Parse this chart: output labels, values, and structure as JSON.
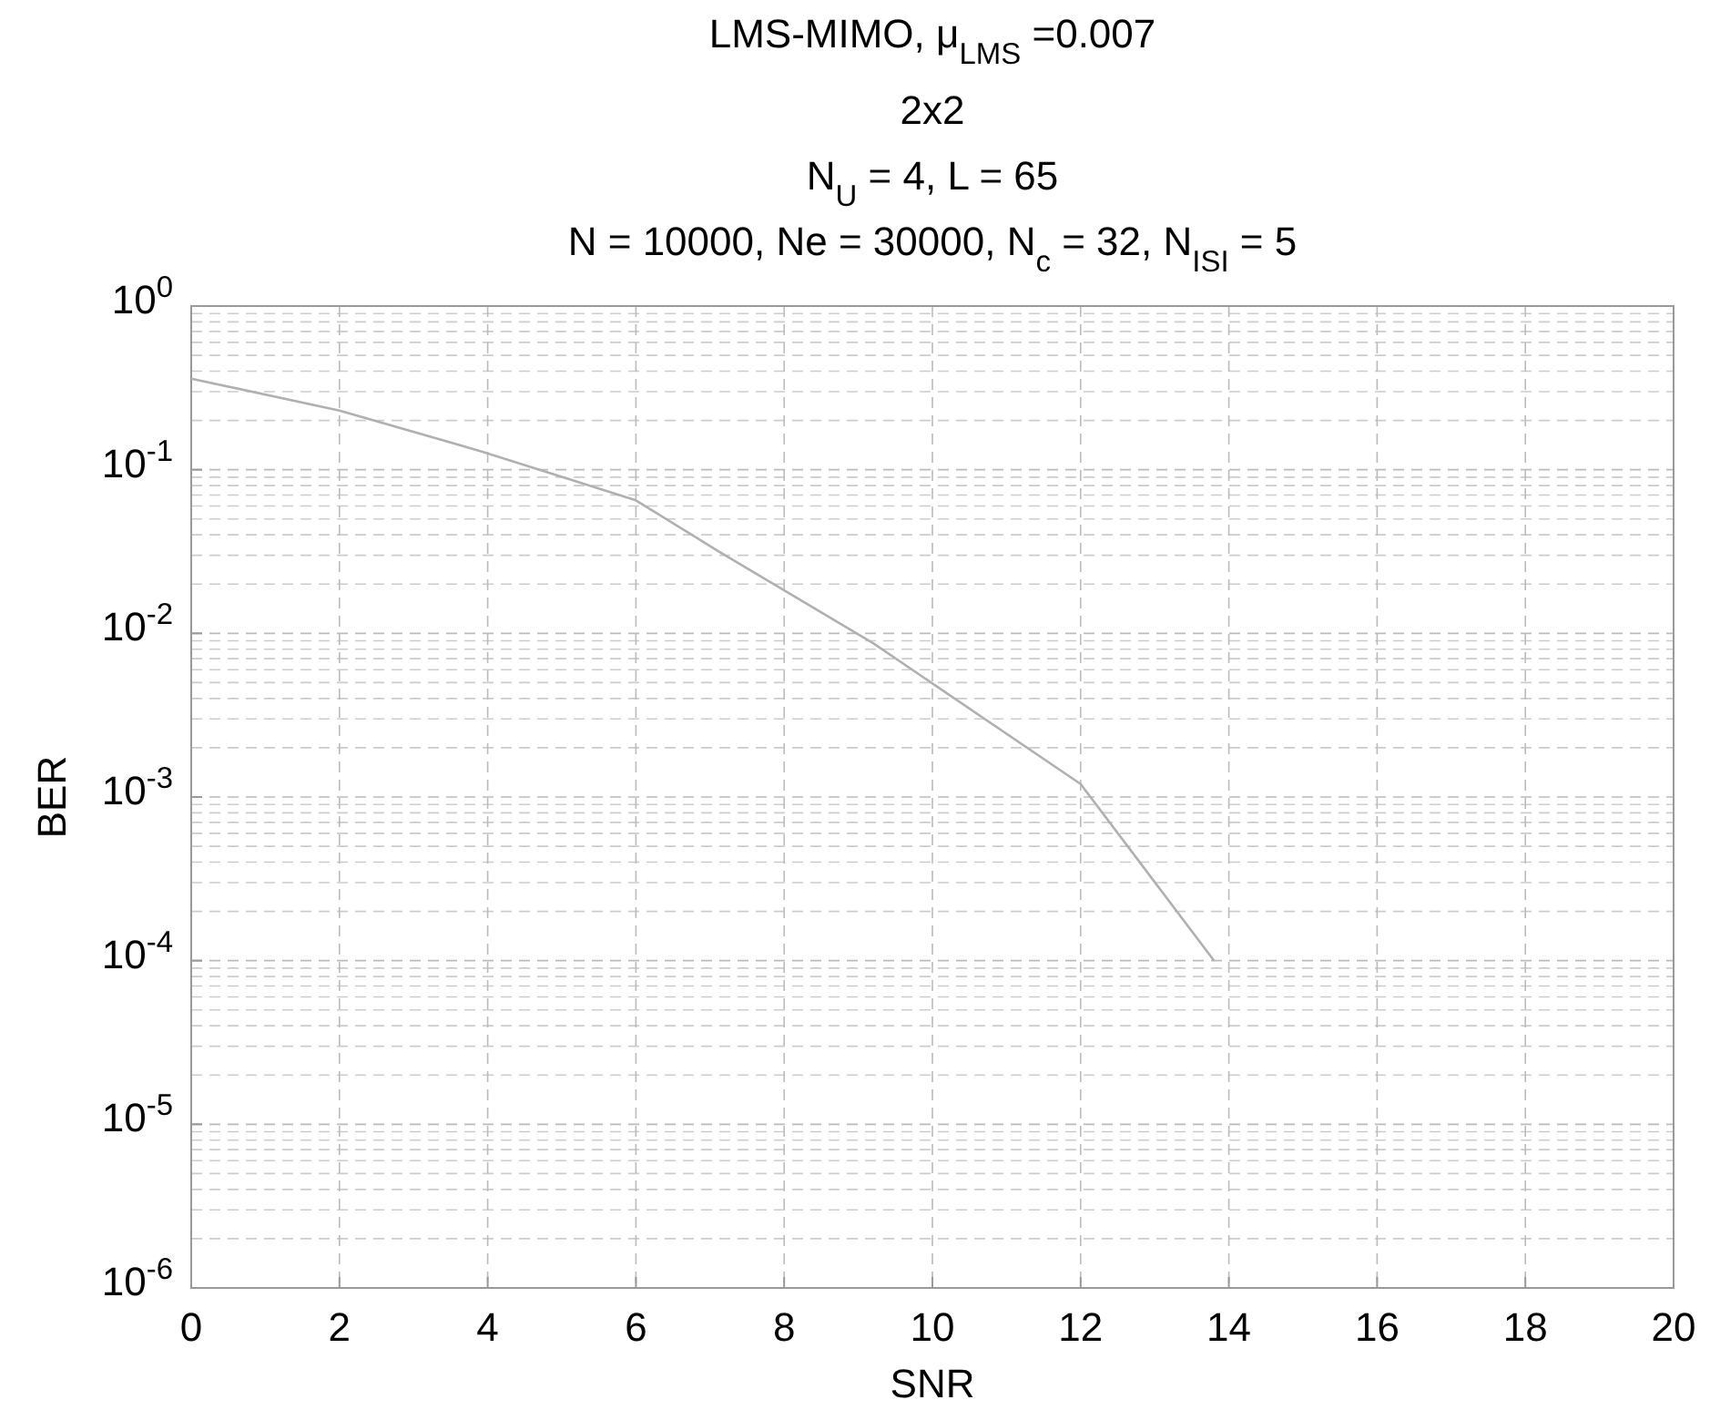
{
  "chart_data": {
    "type": "line",
    "title": "LMS-MIMO, μ$_{LMS}$ =0.007",
    "subtitle": "2x2\nN$_{U}$ = 4, L = 65\nN = 10000, Ne = 30000, N$_{c}$ = 32, N$_{ISI}$ = 5",
    "xlabel": "SNR",
    "ylabel": "BER",
    "x": [
      0,
      2,
      3.9,
      6,
      7.1,
      9.2,
      12,
      13.8
    ],
    "series": [
      {
        "color": "#b0b0b0",
        "values": [
          0.36,
          0.23,
          0.13,
          0.065,
          0.032,
          0.0087,
          0.0012,
          0.0001
        ]
      }
    ],
    "xlim": [
      0,
      20
    ],
    "xticks": [
      0,
      2,
      4,
      6,
      8,
      10,
      12,
      14,
      16,
      18,
      20
    ],
    "ylim": [
      1e-06,
      1
    ],
    "yticks": [
      {
        "value": 1,
        "label": "10$^{0}$"
      },
      {
        "value": 0.1,
        "label": "10$^{-1}$"
      },
      {
        "value": 0.01,
        "label": "10$^{-2}$"
      },
      {
        "value": 0.001,
        "label": "10$^{-3}$"
      },
      {
        "value": 0.0001,
        "label": "10$^{-4}$"
      },
      {
        "value": 1e-05,
        "label": "10$^{-5}$"
      },
      {
        "value": 1e-06,
        "label": "10$^{-6}$"
      }
    ],
    "log": "y",
    "grid": true,
    "marker": "none",
    "line_style": "solid"
  }
}
